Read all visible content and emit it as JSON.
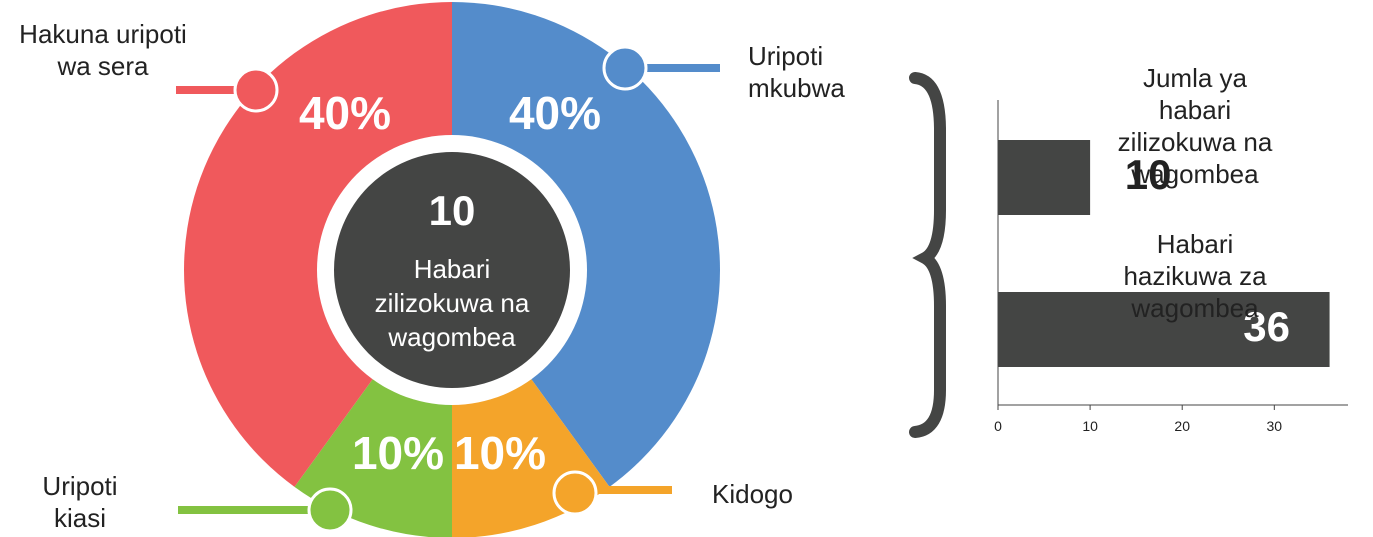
{
  "chart_data": [
    {
      "type": "donut",
      "center_title": "10",
      "center_subtitle": "Habari\nzilizokuwa na\nwagombea",
      "series": [
        {
          "name": "Uripoti\nmkubwa",
          "color": "#548ccb",
          "value": 40,
          "value_label": "40%"
        },
        {
          "name": "Kidogo",
          "color": "#f4a42a",
          "value": 10,
          "value_label": "10%"
        },
        {
          "name": "Uripoti\nkiasi",
          "color": "#83c241",
          "value": 10,
          "value_label": "10%"
        },
        {
          "name": "Hakuna uripoti\nwa sera",
          "color": "#f0595c",
          "value": 40,
          "value_label": "40%"
        }
      ]
    },
    {
      "type": "hbar",
      "categories": [
        "Jumla ya habari\nzilizokuwa na wagombea",
        "Habari hazikuwa za\nwagombea"
      ],
      "values": [
        10,
        36
      ],
      "color": "#444544",
      "xlim": [
        0,
        38
      ],
      "xticks": [
        0,
        10,
        20,
        30
      ]
    }
  ]
}
